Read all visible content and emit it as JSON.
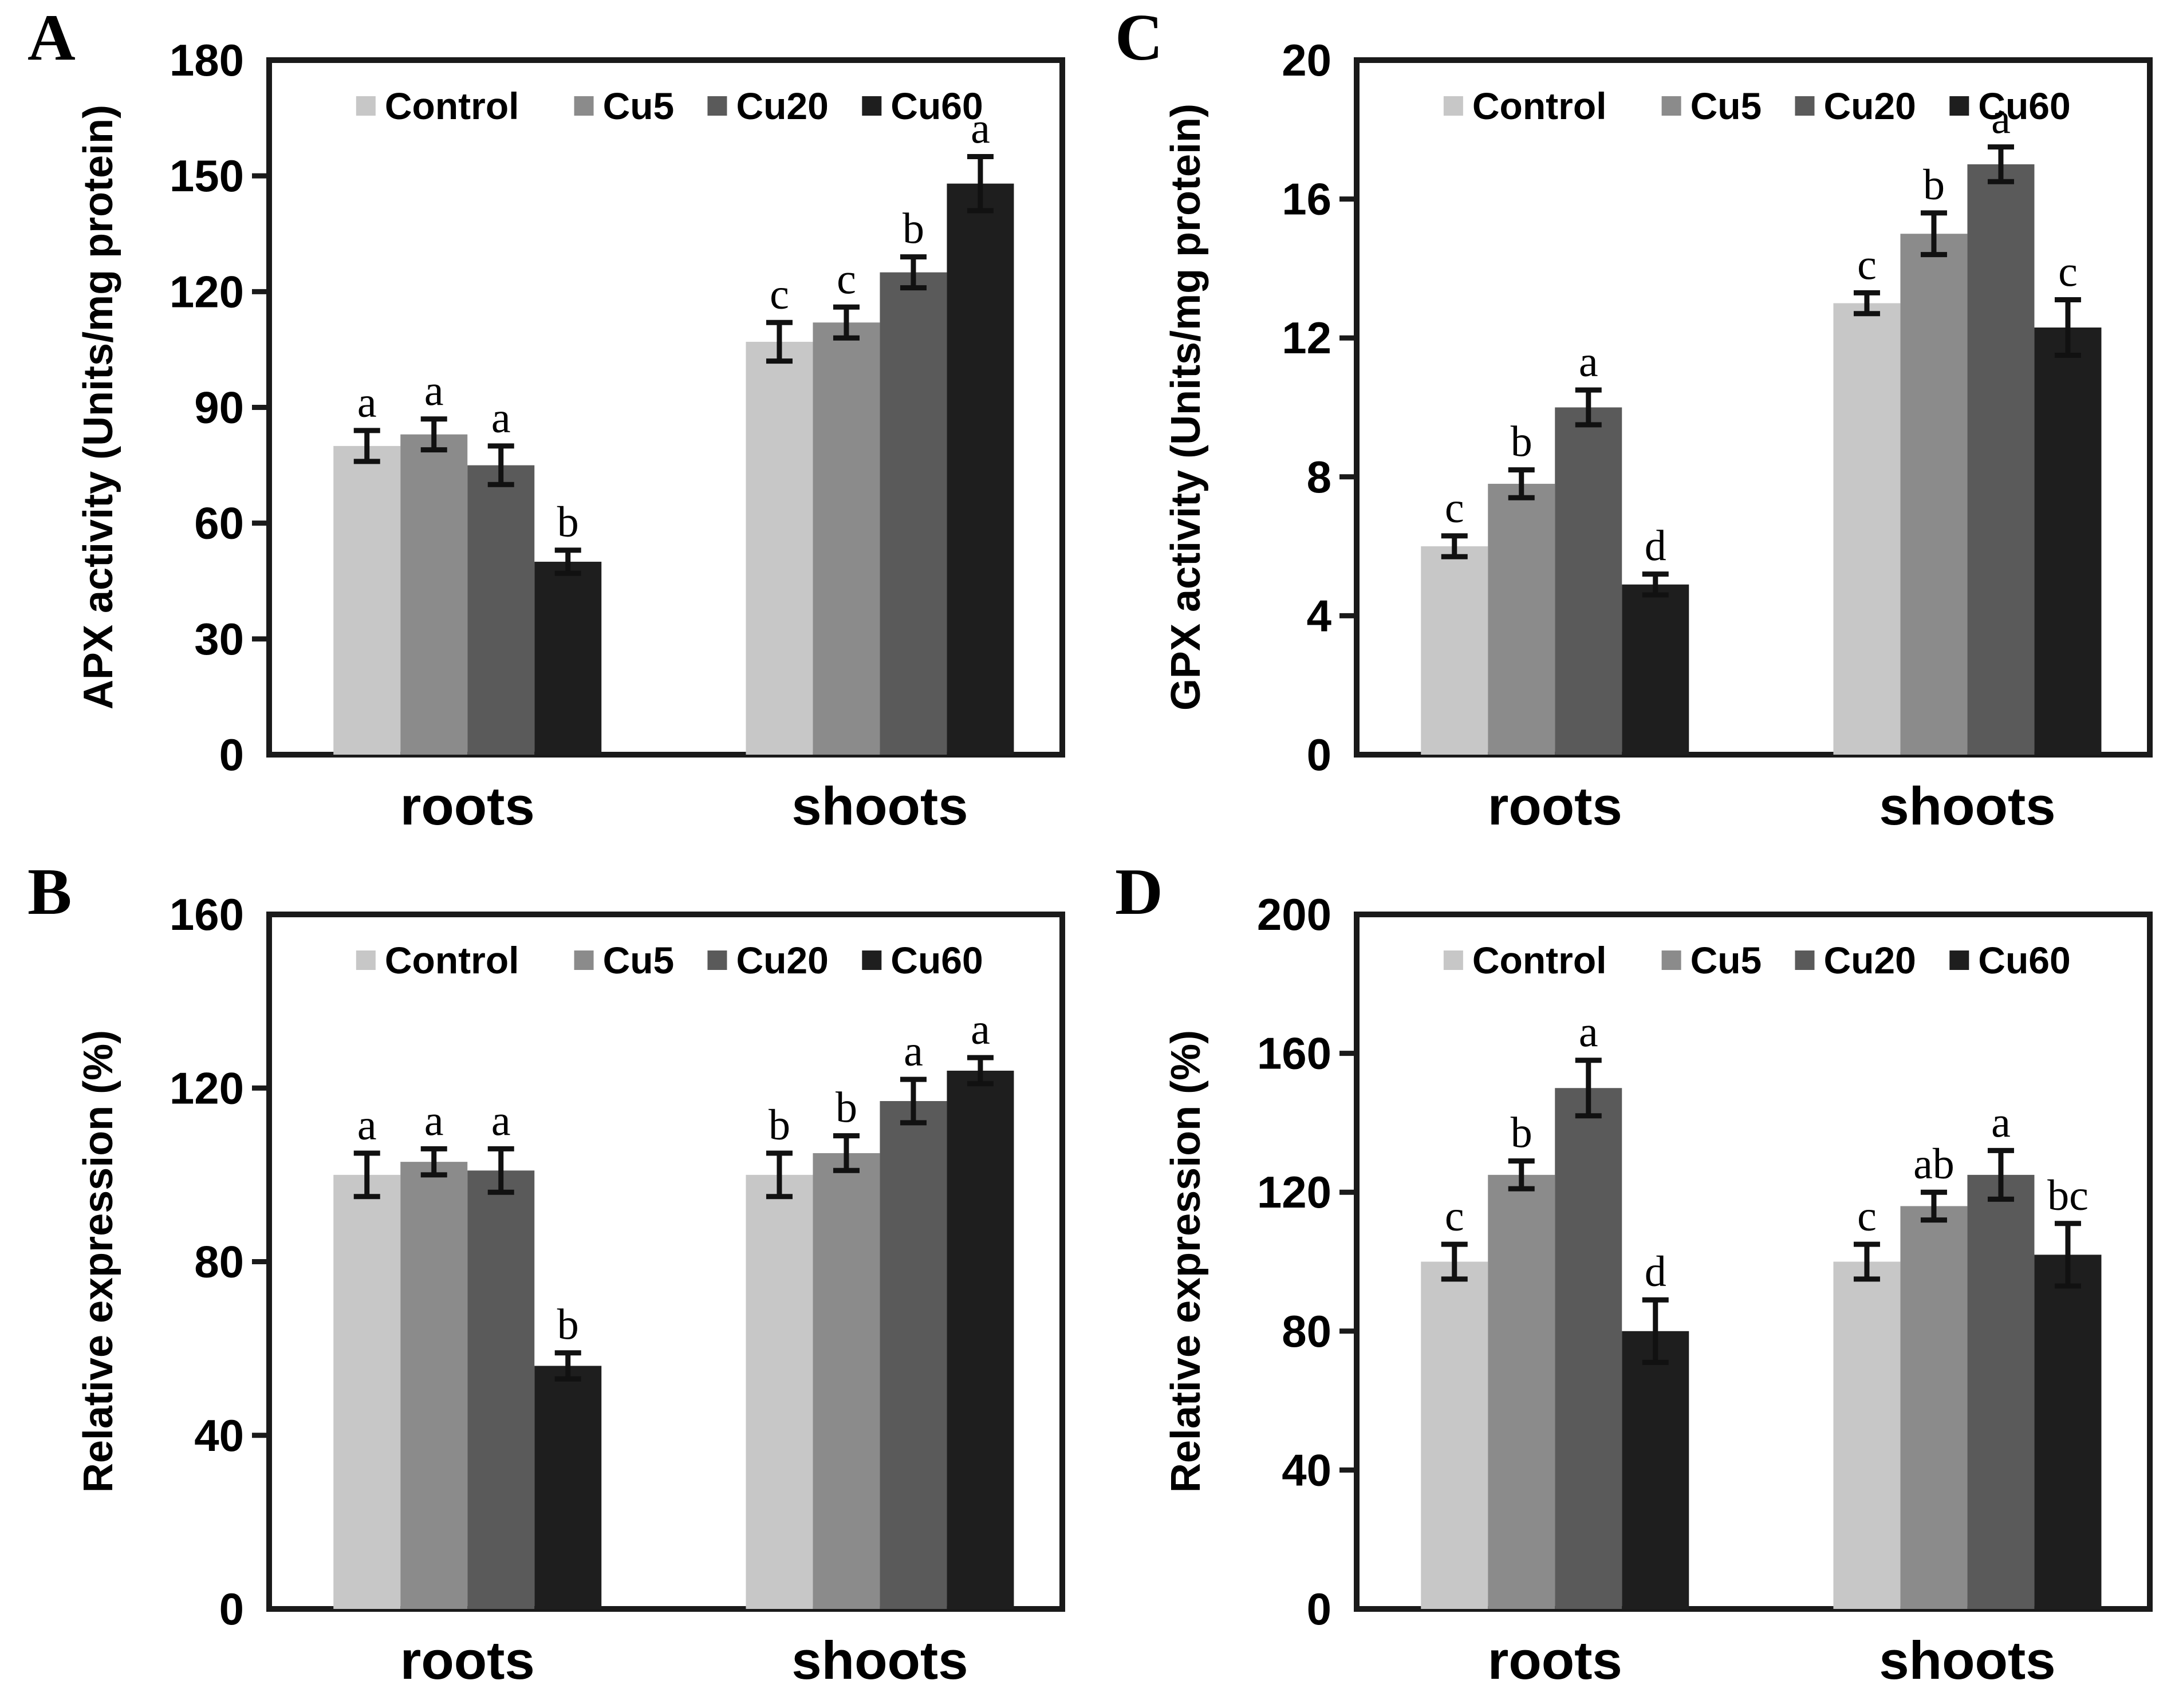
{
  "figure": {
    "background": "#ffffff",
    "axis_color": "#1a1a1a",
    "text_color": "#000000",
    "error_bar_color": "#111111",
    "series_colors": [
      "#c7c7c7",
      "#8b8b8b",
      "#5a5a5a",
      "#1e1e1e"
    ],
    "legend_labels": [
      "Control",
      "Cu5",
      "Cu20",
      "Cu60"
    ]
  },
  "chart_data": [
    {
      "type": "bar",
      "panel_label": "A",
      "title": "",
      "xlabel": "",
      "ylabel": "APX activity (Units/mg protein)",
      "categories": [
        "roots",
        "shoots"
      ],
      "ylim": [
        0,
        180
      ],
      "yticks": [
        0,
        30,
        60,
        90,
        120,
        150,
        180
      ],
      "grid": false,
      "legend_position": "top-inside",
      "legend": [
        "Control",
        "Cu5",
        "Cu20",
        "Cu60"
      ],
      "series": [
        {
          "name": "Control",
          "values": [
            80,
            107
          ],
          "errors": [
            4,
            5
          ],
          "sig_letters": [
            "a",
            "c"
          ]
        },
        {
          "name": "Cu5",
          "values": [
            83,
            112
          ],
          "errors": [
            4,
            4
          ],
          "sig_letters": [
            "a",
            "c"
          ]
        },
        {
          "name": "Cu20",
          "values": [
            75,
            125
          ],
          "errors": [
            5,
            4
          ],
          "sig_letters": [
            "a",
            "b"
          ]
        },
        {
          "name": "Cu60",
          "values": [
            50,
            148
          ],
          "errors": [
            3,
            7
          ],
          "sig_letters": [
            "b",
            "a"
          ]
        }
      ]
    },
    {
      "type": "bar",
      "panel_label": "B",
      "title": "",
      "xlabel": "",
      "ylabel": "Relative expression (%)",
      "categories": [
        "roots",
        "shoots"
      ],
      "ylim": [
        0,
        160
      ],
      "yticks": [
        0,
        40,
        80,
        120,
        160
      ],
      "grid": false,
      "legend_position": "top-inside",
      "legend": [
        "Control",
        "Cu5",
        "Cu20",
        "Cu60"
      ],
      "series": [
        {
          "name": "Control",
          "values": [
            100,
            100
          ],
          "errors": [
            5,
            5
          ],
          "sig_letters": [
            "a",
            "b"
          ]
        },
        {
          "name": "Cu5",
          "values": [
            103,
            105
          ],
          "errors": [
            3,
            4
          ],
          "sig_letters": [
            "a",
            "b"
          ]
        },
        {
          "name": "Cu20",
          "values": [
            101,
            117
          ],
          "errors": [
            5,
            5
          ],
          "sig_letters": [
            "a",
            "a"
          ]
        },
        {
          "name": "Cu60",
          "values": [
            56,
            124
          ],
          "errors": [
            3,
            3
          ],
          "sig_letters": [
            "b",
            "a"
          ]
        }
      ]
    },
    {
      "type": "bar",
      "panel_label": "C",
      "title": "",
      "xlabel": "",
      "ylabel": "GPX activity (Units/mg protein)",
      "categories": [
        "roots",
        "shoots"
      ],
      "ylim": [
        0,
        20
      ],
      "yticks": [
        0,
        4,
        8,
        12,
        16,
        20
      ],
      "grid": false,
      "legend_position": "top-inside",
      "legend": [
        "Control",
        "Cu5",
        "Cu20",
        "Cu60"
      ],
      "series": [
        {
          "name": "Control",
          "values": [
            6,
            13
          ],
          "errors": [
            0.3,
            0.3
          ],
          "sig_letters": [
            "c",
            "c"
          ]
        },
        {
          "name": "Cu5",
          "values": [
            7.8,
            15
          ],
          "errors": [
            0.4,
            0.6
          ],
          "sig_letters": [
            "b",
            "b"
          ]
        },
        {
          "name": "Cu20",
          "values": [
            10,
            17
          ],
          "errors": [
            0.5,
            0.5
          ],
          "sig_letters": [
            "a",
            "a"
          ]
        },
        {
          "name": "Cu60",
          "values": [
            4.9,
            12.3
          ],
          "errors": [
            0.3,
            0.8
          ],
          "sig_letters": [
            "d",
            "c"
          ]
        }
      ]
    },
    {
      "type": "bar",
      "panel_label": "D",
      "title": "",
      "xlabel": "",
      "ylabel": "Relative expression (%)",
      "categories": [
        "roots",
        "shoots"
      ],
      "ylim": [
        0,
        200
      ],
      "yticks": [
        0,
        40,
        80,
        120,
        160,
        200
      ],
      "grid": false,
      "legend_position": "top-inside",
      "legend": [
        "Control",
        "Cu5",
        "Cu20",
        "Cu60"
      ],
      "series": [
        {
          "name": "Control",
          "values": [
            100,
            100
          ],
          "errors": [
            5,
            5
          ],
          "sig_letters": [
            "c",
            "c"
          ]
        },
        {
          "name": "Cu5",
          "values": [
            125,
            116
          ],
          "errors": [
            4,
            4
          ],
          "sig_letters": [
            "b",
            "ab"
          ]
        },
        {
          "name": "Cu20",
          "values": [
            150,
            125
          ],
          "errors": [
            8,
            7
          ],
          "sig_letters": [
            "a",
            "a"
          ]
        },
        {
          "name": "Cu60",
          "values": [
            80,
            102
          ],
          "errors": [
            9,
            9
          ],
          "sig_letters": [
            "d",
            "bc"
          ]
        }
      ]
    }
  ]
}
